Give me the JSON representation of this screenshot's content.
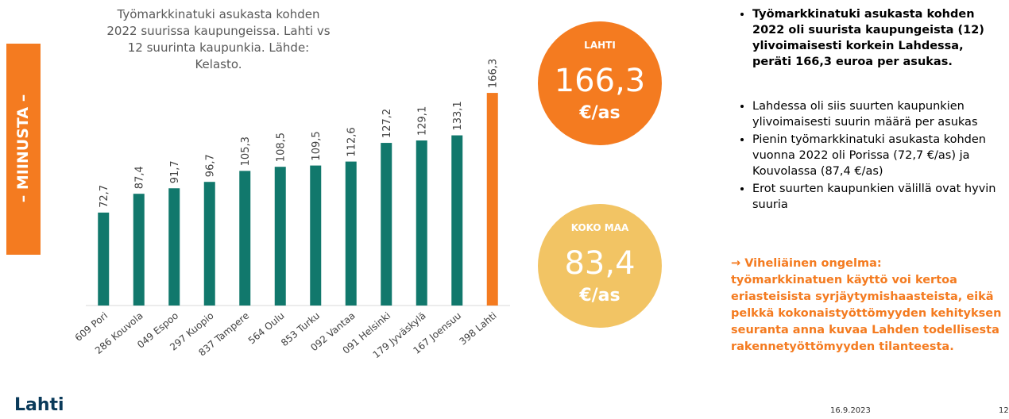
{
  "side_label": "– MIINUSTA –",
  "chart_data": {
    "type": "bar",
    "title": "Työmarkkinatuki asukasta kohden 2022 suurissa kaupungeissa. Lahti vs 12 suurinta kaupunkia. Lähde: Kelasto.",
    "categories": [
      "609 Pori",
      "286 Kouvola",
      "049 Espoo",
      "297 Kuopio",
      "837 Tampere",
      "564 Oulu",
      "853 Turku",
      "092 Vantaa",
      "091 Helsinki",
      "179 Jyväskylä",
      "167 Joensuu",
      "398 Lahti"
    ],
    "values": [
      72.7,
      87.4,
      91.7,
      96.7,
      105.3,
      108.5,
      109.5,
      112.6,
      127.2,
      129.1,
      133.1,
      166.3
    ],
    "value_labels": [
      "72,7",
      "87,4",
      "91,7",
      "96,7",
      "105,3",
      "108,5",
      "109,5",
      "112,6",
      "127,2",
      "129,1",
      "133,1",
      "166,3"
    ],
    "colors": [
      "#11786c",
      "#11786c",
      "#11786c",
      "#11786c",
      "#11786c",
      "#11786c",
      "#11786c",
      "#11786c",
      "#11786c",
      "#11786c",
      "#11786c",
      "#f47b20"
    ],
    "ylim": [
      0,
      180
    ],
    "grid": false
  },
  "cards": [
    {
      "label": "LAHTI",
      "value": "166,3",
      "unit": "€/as",
      "color": "#f47b20"
    },
    {
      "label": "KOKO MAA",
      "value": "83,4",
      "unit": "€/as",
      "color": "#f2c464"
    }
  ],
  "bullets_top": [
    "Työmarkkinatuki asukasta kohden 2022 oli suurista kaupungeista (12) ylivoimaisesti korkein Lahdessa, peräti 166,3 euroa per asukas."
  ],
  "bullets": [
    "Lahdessa oli siis suurten kaupunkien ylivoimaisesti suurin määrä per asukas",
    "Pienin työmarkkinatuki asukasta kohden vuonna 2022 oli Porissa (72,7 €/as) ja Kouvolassa (87,4 €/as)",
    "Erot suurten kaupunkien välillä ovat hyvin suuria"
  ],
  "highlight": {
    "heading": "→ Viheliäinen ongelma:",
    "text": "työmarkkinatuen käyttö voi kertoa eriasteisista syrjäytymishaasteista, eikä pelkkä kokonaistyöttömyyden kehityksen seuranta anna kuvaa Lahden todellisesta rakennetyöttömyyden tilanteesta."
  },
  "footer": {
    "logo": "Lahti",
    "date": "16.9.2023",
    "page": "12"
  }
}
